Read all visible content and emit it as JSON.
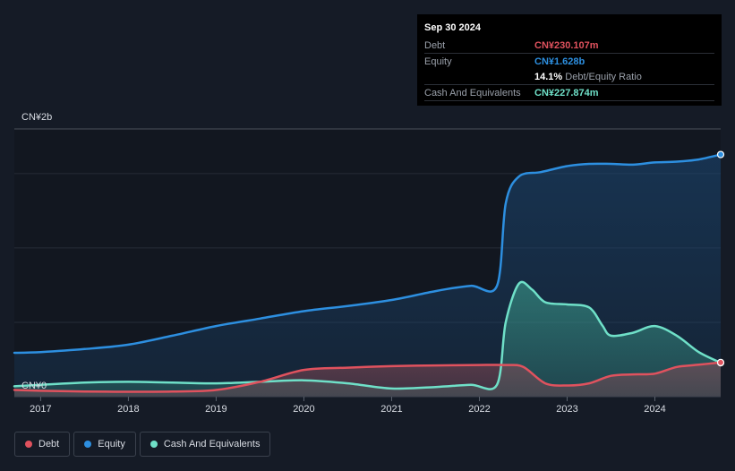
{
  "tooltip": {
    "date": "Sep 30 2024",
    "debt_label": "Debt",
    "debt_value": "CN¥230.107m",
    "equity_label": "Equity",
    "equity_value": "CN¥1.628b",
    "ratio_value": "14.1%",
    "ratio_label": "Debt/Equity Ratio",
    "cash_label": "Cash And Equivalents",
    "cash_value": "CN¥227.874m"
  },
  "legend": {
    "debt": "Debt",
    "equity": "Equity",
    "cash": "Cash And Equivalents"
  },
  "colors": {
    "debt": "#e0525e",
    "equity": "#2d8fe0",
    "cash": "#6fe0c8",
    "background": "#151b26"
  },
  "chart_data": {
    "type": "area",
    "y_unit": "CN¥ billions",
    "ylim": [
      0,
      1.8
    ],
    "y_tick_labels": [
      {
        "value": 1.8,
        "label": "CN¥2b"
      },
      {
        "value": 0,
        "label": "CN¥0"
      }
    ],
    "xlim": [
      2016.7,
      2024.75
    ],
    "x_ticks": [
      2017,
      2018,
      2019,
      2020,
      2021,
      2022,
      2023,
      2024
    ],
    "x_tick_labels": [
      "2017",
      "2018",
      "2019",
      "2020",
      "2021",
      "2022",
      "2023",
      "2024"
    ],
    "grid_values": [
      0.5,
      1.0,
      1.5
    ],
    "series": [
      {
        "name": "Equity",
        "color": "#2d8fe0",
        "points": [
          [
            2016.7,
            0.295
          ],
          [
            2017.0,
            0.3
          ],
          [
            2017.5,
            0.32
          ],
          [
            2018.0,
            0.35
          ],
          [
            2018.5,
            0.41
          ],
          [
            2019.0,
            0.475
          ],
          [
            2019.5,
            0.525
          ],
          [
            2020.0,
            0.575
          ],
          [
            2020.5,
            0.61
          ],
          [
            2021.0,
            0.65
          ],
          [
            2021.5,
            0.71
          ],
          [
            2021.9,
            0.745
          ],
          [
            2022.2,
            0.745
          ],
          [
            2022.3,
            1.3
          ],
          [
            2022.45,
            1.48
          ],
          [
            2022.7,
            1.51
          ],
          [
            2023.0,
            1.55
          ],
          [
            2023.25,
            1.565
          ],
          [
            2023.5,
            1.565
          ],
          [
            2023.75,
            1.56
          ],
          [
            2024.0,
            1.575
          ],
          [
            2024.25,
            1.58
          ],
          [
            2024.5,
            1.595
          ],
          [
            2024.75,
            1.628
          ]
        ]
      },
      {
        "name": "Debt",
        "color": "#e0525e",
        "points": [
          [
            2016.7,
            0.045
          ],
          [
            2017.0,
            0.04
          ],
          [
            2017.5,
            0.035
          ],
          [
            2018.0,
            0.033
          ],
          [
            2018.5,
            0.035
          ],
          [
            2019.0,
            0.045
          ],
          [
            2019.5,
            0.1
          ],
          [
            2020.0,
            0.18
          ],
          [
            2020.5,
            0.195
          ],
          [
            2021.0,
            0.205
          ],
          [
            2021.5,
            0.21
          ],
          [
            2022.0,
            0.213
          ],
          [
            2022.3,
            0.213
          ],
          [
            2022.5,
            0.2
          ],
          [
            2022.75,
            0.09
          ],
          [
            2023.0,
            0.075
          ],
          [
            2023.25,
            0.09
          ],
          [
            2023.5,
            0.14
          ],
          [
            2023.75,
            0.15
          ],
          [
            2024.0,
            0.155
          ],
          [
            2024.25,
            0.2
          ],
          [
            2024.5,
            0.215
          ],
          [
            2024.75,
            0.23
          ]
        ]
      },
      {
        "name": "Cash And Equivalents",
        "color": "#6fe0c8",
        "points": [
          [
            2016.7,
            0.07
          ],
          [
            2017.0,
            0.08
          ],
          [
            2017.5,
            0.095
          ],
          [
            2018.0,
            0.1
          ],
          [
            2018.5,
            0.095
          ],
          [
            2019.0,
            0.09
          ],
          [
            2019.5,
            0.1
          ],
          [
            2020.0,
            0.11
          ],
          [
            2020.5,
            0.09
          ],
          [
            2021.0,
            0.055
          ],
          [
            2021.5,
            0.065
          ],
          [
            2021.9,
            0.08
          ],
          [
            2022.2,
            0.08
          ],
          [
            2022.3,
            0.5
          ],
          [
            2022.45,
            0.76
          ],
          [
            2022.6,
            0.72
          ],
          [
            2022.75,
            0.635
          ],
          [
            2023.0,
            0.62
          ],
          [
            2023.25,
            0.6
          ],
          [
            2023.4,
            0.48
          ],
          [
            2023.5,
            0.41
          ],
          [
            2023.75,
            0.43
          ],
          [
            2024.0,
            0.475
          ],
          [
            2024.25,
            0.41
          ],
          [
            2024.5,
            0.3
          ],
          [
            2024.75,
            0.228
          ]
        ]
      }
    ]
  }
}
